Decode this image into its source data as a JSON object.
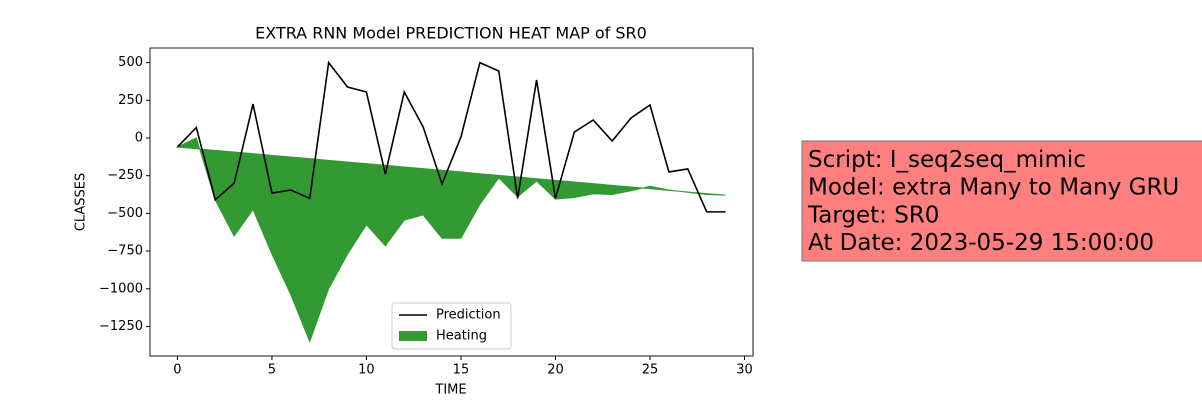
{
  "chart_data": {
    "type": "line-area",
    "title": "EXTRA RNN Model PREDICTION HEAT MAP of SR0",
    "x_label": "TIME",
    "y_label": "CLASSES",
    "x": [
      0,
      1,
      2,
      3,
      4,
      5,
      6,
      7,
      8,
      9,
      10,
      11,
      12,
      13,
      14,
      15,
      16,
      17,
      18,
      19,
      20,
      21,
      22,
      23,
      24,
      25,
      26,
      27,
      28,
      29
    ],
    "series": [
      {
        "name": "Prediction",
        "color": "#000000",
        "kind": "line",
        "values": [
          -60,
          70,
          -410,
          -300,
          225,
          -365,
          -345,
          -400,
          500,
          338,
          305,
          -239,
          305,
          73,
          -305,
          7,
          500,
          444,
          -400,
          385,
          -400,
          40,
          119,
          -20,
          133,
          219,
          -225,
          -205,
          -490,
          -490
        ]
      },
      {
        "name": "Heating",
        "color": "#339933",
        "kind": "area",
        "values": [
          -60,
          0,
          -410,
          -650,
          -475,
          -770,
          -1040,
          -1350,
          -1000,
          -770,
          -575,
          -715,
          -545,
          -510,
          -665,
          -665,
          -440,
          -265,
          -390,
          -285,
          -405,
          -395,
          -370,
          -375,
          -350,
          -320,
          -345,
          -360,
          -375,
          -380
        ],
        "base": [
          -60,
          -71,
          -82,
          -93,
          -104,
          -115,
          -126,
          -137,
          -148,
          -159,
          -170,
          -181,
          -192,
          -203,
          -214,
          -225,
          -237,
          -248,
          -259,
          -270,
          -281,
          -292,
          -303,
          -314,
          -325,
          -336,
          -347,
          -358,
          -369,
          -380
        ]
      }
    ],
    "xlim": [
      -1.45,
      30.45
    ],
    "ylim": [
      -1446,
      597
    ],
    "xticks": [
      0,
      5,
      10,
      15,
      20,
      25,
      30
    ],
    "yticks": [
      500,
      250,
      0,
      {
        "value": -250,
        "label": "−250"
      },
      {
        "value": -500,
        "label": "−500"
      },
      {
        "value": -750,
        "label": "−750"
      },
      {
        "value": -1000,
        "label": "−1000"
      },
      {
        "value": -1250,
        "label": "−1250"
      }
    ],
    "legend": "lower center",
    "annotation": [
      "Script: I_seq2seq_mimic",
      "Model: extra Many to Many GRU",
      "Target: SR0",
      "At Date: 2023-05-29 15:00:00"
    ],
    "annotation_color": "#ff7f7f"
  }
}
